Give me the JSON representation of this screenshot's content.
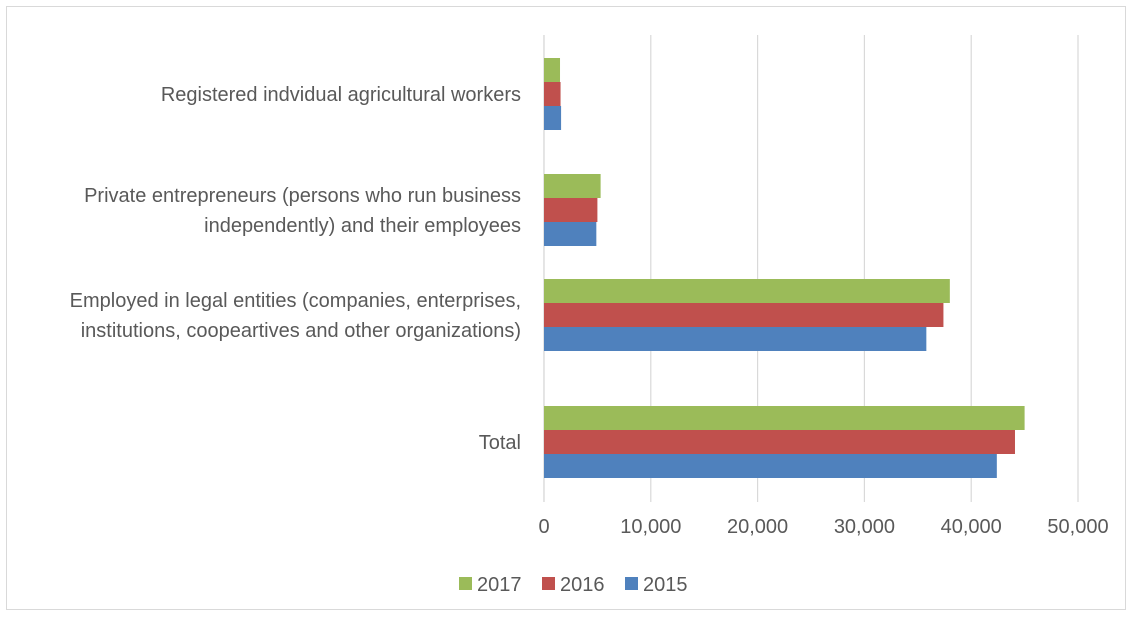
{
  "chart_data": {
    "type": "bar",
    "orientation": "horizontal",
    "categories": [
      "Total",
      "Employed in legal entities (companies, enterprises, institutions, coopeartives and other organizations)",
      "Private entrepreneurs (persons who run business independently) and their employees",
      "Registered indvidual agricultural workers"
    ],
    "category_lines": [
      [
        "Total"
      ],
      [
        "Employed in legal entities (companies, enterprises,",
        "institutions, coopeartives and other organizations)"
      ],
      [
        "Private entrepreneurs (persons who run business",
        "independently) and their employees"
      ],
      [
        "Registered indvidual agricultural workers"
      ]
    ],
    "series": [
      {
        "name": "2015",
        "color": "#4f81bd",
        "values": [
          42400,
          35800,
          4900,
          1600
        ]
      },
      {
        "name": "2016",
        "color": "#c0504d",
        "values": [
          44100,
          37400,
          5000,
          1550
        ]
      },
      {
        "name": "2017",
        "color": "#9bbb59",
        "values": [
          45000,
          38000,
          5300,
          1500
        ]
      }
    ],
    "legend_order": [
      "2017",
      "2016",
      "2015"
    ],
    "xlim": [
      0,
      50000
    ],
    "xticks": [
      0,
      10000,
      20000,
      30000,
      40000,
      50000
    ],
    "xtick_labels": [
      "0",
      "10,000",
      "20,000",
      "30,000",
      "40,000",
      "50,000"
    ],
    "grid": "vertical",
    "legend_position": "bottom",
    "title": "",
    "xlabel": "",
    "ylabel": ""
  }
}
